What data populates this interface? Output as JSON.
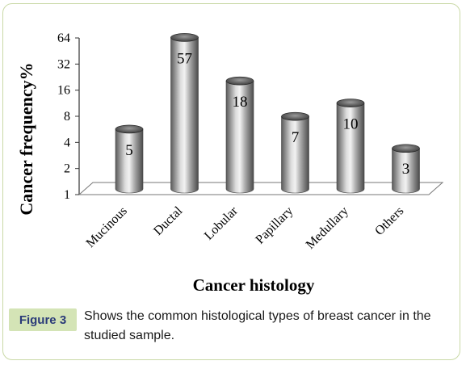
{
  "chart_data": {
    "type": "bar",
    "categories": [
      "Mucinous",
      "Ductal",
      "Lobular",
      "Papillary",
      "Medullary",
      "Others"
    ],
    "values": [
      5,
      57,
      18,
      7,
      10,
      3
    ],
    "data_labels": [
      "5",
      "57",
      "18",
      "7",
      "10",
      "3"
    ],
    "xlabel": "Cancer histology",
    "ylabel": "Cancer frequency%",
    "yscale": "log2",
    "ylim": [
      1,
      64
    ],
    "yticks": [
      1,
      2,
      4,
      8,
      16,
      32,
      64
    ],
    "grid": false,
    "bar_style": "3d-cylinder",
    "bar_color": "#8c8c8c"
  },
  "caption": {
    "tag": "Figure 3",
    "text": "Shows the common histological types of breast cancer in the studied sample."
  },
  "colors": {
    "frame_border": "#c9d9a6",
    "tag_background": "#d4e4b6",
    "tag_text": "#2a3a78"
  }
}
